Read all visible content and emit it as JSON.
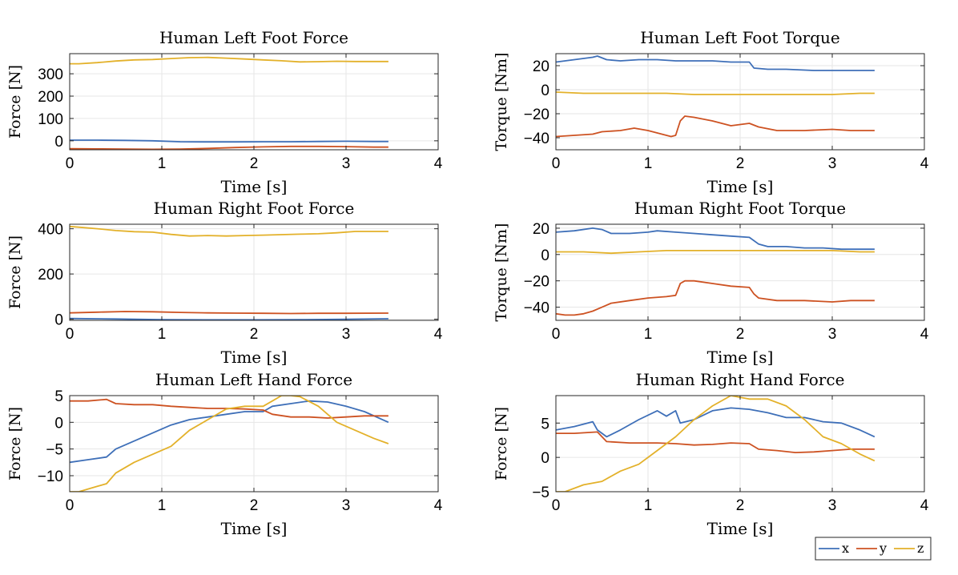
{
  "colors": {
    "x": "#3E6FB8",
    "y": "#CD5222",
    "z": "#E3B12A",
    "axis": "#262626",
    "grid": "#e6e6e6"
  },
  "legend": {
    "entries": [
      "x",
      "y",
      "z"
    ]
  },
  "chart_data": [
    {
      "type": "line",
      "title": "Human Left Foot Force",
      "xlabel": "Time [s]",
      "ylabel": "Force [N]",
      "xlim": [
        0,
        4
      ],
      "ylim": [
        -40,
        390
      ],
      "xticks": [
        0,
        1,
        2,
        3,
        4
      ],
      "yticks": [
        0,
        100,
        200,
        300
      ],
      "series": [
        {
          "name": "x",
          "x": [
            0,
            0.3,
            0.6,
            0.9,
            1.2,
            1.5,
            1.8,
            2.1,
            2.4,
            2.7,
            3.0,
            3.3,
            3.46
          ],
          "values": [
            3,
            3,
            2,
            0,
            -4,
            -5,
            -5,
            -4,
            -4,
            -3,
            -2,
            -3,
            -3
          ]
        },
        {
          "name": "y",
          "x": [
            0,
            0.3,
            0.6,
            0.9,
            1.2,
            1.5,
            1.8,
            2.1,
            2.4,
            2.7,
            3.0,
            3.3,
            3.46
          ],
          "values": [
            -35,
            -36,
            -37,
            -38,
            -37,
            -34,
            -30,
            -27,
            -25,
            -25,
            -26,
            -28,
            -28
          ]
        },
        {
          "name": "z",
          "x": [
            0,
            0.1,
            0.3,
            0.5,
            0.7,
            0.9,
            1.1,
            1.3,
            1.5,
            1.7,
            1.9,
            2.1,
            2.3,
            2.5,
            2.7,
            2.9,
            3.1,
            3.3,
            3.46
          ],
          "values": [
            345,
            345,
            350,
            357,
            362,
            364,
            368,
            372,
            373,
            370,
            366,
            362,
            358,
            353,
            354,
            356,
            355,
            355,
            355
          ]
        }
      ]
    },
    {
      "type": "line",
      "title": "Human Left Foot Torque",
      "xlabel": "Time [s]",
      "ylabel": "Torque [Nm]",
      "xlim": [
        0,
        4
      ],
      "ylim": [
        -50,
        30
      ],
      "xticks": [
        0,
        1,
        2,
        3,
        4
      ],
      "yticks": [
        -40,
        -20,
        0,
        20
      ],
      "series": [
        {
          "name": "x",
          "x": [
            0,
            0.1,
            0.2,
            0.3,
            0.4,
            0.45,
            0.55,
            0.7,
            0.9,
            1.1,
            1.3,
            1.5,
            1.7,
            1.9,
            2.1,
            2.15,
            2.3,
            2.5,
            2.8,
            3.0,
            3.2,
            3.46
          ],
          "values": [
            23,
            24,
            25,
            26,
            27,
            28,
            25,
            24,
            25,
            25,
            24,
            24,
            24,
            23,
            23,
            18,
            17,
            17,
            16,
            16,
            16,
            16
          ]
        },
        {
          "name": "y",
          "x": [
            0,
            0.2,
            0.4,
            0.5,
            0.7,
            0.85,
            1.0,
            1.1,
            1.2,
            1.25,
            1.3,
            1.35,
            1.4,
            1.5,
            1.7,
            1.9,
            2.1,
            2.2,
            2.4,
            2.7,
            3.0,
            3.2,
            3.46
          ],
          "values": [
            -39,
            -38,
            -37,
            -35,
            -34,
            -32,
            -34,
            -36,
            -38,
            -39,
            -38,
            -26,
            -22,
            -23,
            -26,
            -30,
            -28,
            -31,
            -34,
            -34,
            -33,
            -34,
            -34
          ]
        },
        {
          "name": "z",
          "x": [
            0,
            0.3,
            0.6,
            0.9,
            1.2,
            1.5,
            1.8,
            2.1,
            2.4,
            2.7,
            3.0,
            3.3,
            3.46
          ],
          "values": [
            -2,
            -3,
            -3,
            -3,
            -3,
            -4,
            -4,
            -4,
            -4,
            -4,
            -4,
            -3,
            -3
          ]
        }
      ]
    },
    {
      "type": "line",
      "title": "Human Right Foot Force",
      "xlabel": "Time [s]",
      "ylabel": "Force [N]",
      "xlim": [
        0,
        4
      ],
      "ylim": [
        -5,
        420
      ],
      "xticks": [
        0,
        1,
        2,
        3,
        4
      ],
      "yticks": [
        0,
        200,
        400
      ],
      "series": [
        {
          "name": "x",
          "x": [
            0,
            0.5,
            1.0,
            1.5,
            2.0,
            2.5,
            3.0,
            3.46
          ],
          "values": [
            3,
            1,
            -2,
            -3,
            -3,
            -2,
            0,
            2
          ]
        },
        {
          "name": "y",
          "x": [
            0,
            0.3,
            0.6,
            0.9,
            1.2,
            1.5,
            1.8,
            2.1,
            2.4,
            2.7,
            3.0,
            3.46
          ],
          "values": [
            28,
            31,
            34,
            33,
            30,
            28,
            27,
            26,
            25,
            26,
            26,
            27
          ]
        },
        {
          "name": "z",
          "x": [
            0,
            0.1,
            0.3,
            0.5,
            0.7,
            0.9,
            1.1,
            1.3,
            1.5,
            1.7,
            1.9,
            2.1,
            2.3,
            2.5,
            2.7,
            2.9,
            3.1,
            3.3,
            3.46
          ],
          "values": [
            410,
            407,
            400,
            392,
            387,
            385,
            375,
            368,
            370,
            368,
            370,
            372,
            374,
            376,
            378,
            382,
            388,
            388,
            388
          ]
        }
      ]
    },
    {
      "type": "line",
      "title": "Human Right Foot Torque",
      "xlabel": "Time [s]",
      "ylabel": "Torque [Nm]",
      "xlim": [
        0,
        4
      ],
      "ylim": [
        -50,
        23
      ],
      "xticks": [
        0,
        1,
        2,
        3,
        4
      ],
      "yticks": [
        -40,
        -20,
        0,
        20
      ],
      "series": [
        {
          "name": "x",
          "x": [
            0,
            0.2,
            0.4,
            0.5,
            0.6,
            0.8,
            1.0,
            1.1,
            1.3,
            1.5,
            1.7,
            1.9,
            2.1,
            2.2,
            2.3,
            2.5,
            2.7,
            2.9,
            3.1,
            3.3,
            3.46
          ],
          "values": [
            17,
            18,
            20,
            19,
            16,
            16,
            17,
            18,
            17,
            16,
            15,
            14,
            13,
            8,
            6,
            6,
            5,
            5,
            4,
            4,
            4
          ]
        },
        {
          "name": "y",
          "x": [
            0,
            0.1,
            0.2,
            0.3,
            0.4,
            0.5,
            0.6,
            0.8,
            1.0,
            1.2,
            1.3,
            1.35,
            1.4,
            1.5,
            1.7,
            1.9,
            2.1,
            2.15,
            2.2,
            2.4,
            2.7,
            3.0,
            3.2,
            3.46
          ],
          "values": [
            -45,
            -46,
            -46,
            -45,
            -43,
            -40,
            -37,
            -35,
            -33,
            -32,
            -31,
            -22,
            -20,
            -20,
            -22,
            -24,
            -25,
            -30,
            -33,
            -35,
            -35,
            -36,
            -35,
            -35
          ]
        },
        {
          "name": "z",
          "x": [
            0,
            0.3,
            0.6,
            0.9,
            1.2,
            1.5,
            1.8,
            2.1,
            2.4,
            2.7,
            3.0,
            3.3,
            3.46
          ],
          "values": [
            2,
            2,
            1,
            2,
            3,
            3,
            3,
            3,
            3,
            3,
            3,
            2,
            2
          ]
        }
      ]
    },
    {
      "type": "line",
      "title": "Human Left Hand Force",
      "xlabel": "Time [s]",
      "ylabel": "Force [N]",
      "xlim": [
        0,
        4
      ],
      "ylim": [
        -13,
        5
      ],
      "xticks": [
        0,
        1,
        2,
        3,
        4
      ],
      "yticks": [
        -10,
        -5,
        0,
        5
      ],
      "series": [
        {
          "name": "x",
          "x": [
            0,
            0.2,
            0.4,
            0.5,
            0.7,
            0.9,
            1.1,
            1.3,
            1.5,
            1.7,
            1.9,
            2.1,
            2.2,
            2.4,
            2.6,
            2.8,
            3.0,
            3.2,
            3.46
          ],
          "values": [
            -7.5,
            -7,
            -6.5,
            -5,
            -3.5,
            -2,
            -0.5,
            0.5,
            1,
            1.5,
            2,
            2,
            3,
            3.5,
            4,
            3.8,
            3,
            2,
            0
          ]
        },
        {
          "name": "y",
          "x": [
            0,
            0.2,
            0.4,
            0.5,
            0.7,
            0.9,
            1.1,
            1.3,
            1.5,
            1.7,
            1.9,
            2.1,
            2.2,
            2.4,
            2.6,
            2.8,
            3.0,
            3.2,
            3.46
          ],
          "values": [
            4,
            4,
            4.3,
            3.5,
            3.3,
            3.3,
            3,
            2.8,
            2.6,
            2.6,
            2.5,
            2.3,
            1.5,
            1,
            1,
            0.8,
            1,
            1.2,
            1.2
          ]
        },
        {
          "name": "z",
          "x": [
            0,
            0.1,
            0.3,
            0.4,
            0.5,
            0.7,
            0.9,
            1.1,
            1.3,
            1.5,
            1.7,
            1.9,
            2.1,
            2.2,
            2.3,
            2.4,
            2.5,
            2.7,
            2.9,
            3.1,
            3.3,
            3.46
          ],
          "values": [
            -13,
            -13,
            -12,
            -11.5,
            -9.5,
            -7.5,
            -6,
            -4.5,
            -1.5,
            0.5,
            2.5,
            3,
            3,
            4,
            5,
            5,
            4.8,
            3,
            0,
            -1.5,
            -3,
            -4
          ]
        }
      ]
    },
    {
      "type": "line",
      "title": "Human Right Hand Force",
      "xlabel": "Time [s]",
      "ylabel": "Force [N]",
      "xlim": [
        0,
        4
      ],
      "ylim": [
        -5,
        9
      ],
      "xticks": [
        0,
        1,
        2,
        3,
        4
      ],
      "yticks": [
        -5,
        0,
        5
      ],
      "series": [
        {
          "name": "x",
          "x": [
            0,
            0.2,
            0.4,
            0.45,
            0.55,
            0.7,
            0.9,
            1.1,
            1.2,
            1.3,
            1.35,
            1.5,
            1.7,
            1.9,
            2.1,
            2.3,
            2.5,
            2.7,
            2.9,
            3.1,
            3.3,
            3.46
          ],
          "values": [
            4,
            4.5,
            5.2,
            4,
            3,
            4,
            5.5,
            6.8,
            6,
            6.8,
            5,
            5.5,
            6.8,
            7.2,
            7,
            6.5,
            5.8,
            5.8,
            5.2,
            5,
            4,
            3
          ]
        },
        {
          "name": "y",
          "x": [
            0,
            0.2,
            0.45,
            0.55,
            0.8,
            1.1,
            1.3,
            1.5,
            1.7,
            1.9,
            2.1,
            2.2,
            2.4,
            2.6,
            2.8,
            3.0,
            3.2,
            3.46
          ],
          "values": [
            3.5,
            3.5,
            3.7,
            2.3,
            2.1,
            2.1,
            2,
            1.8,
            1.9,
            2.1,
            2,
            1.2,
            1,
            0.7,
            0.8,
            1,
            1.2,
            1.2
          ]
        },
        {
          "name": "z",
          "x": [
            0,
            0.1,
            0.3,
            0.5,
            0.7,
            0.9,
            1.1,
            1.3,
            1.5,
            1.7,
            1.9,
            2.1,
            2.3,
            2.5,
            2.7,
            2.9,
            3.1,
            3.3,
            3.46
          ],
          "values": [
            -5,
            -5,
            -4,
            -3.5,
            -2,
            -1,
            1,
            3,
            5.5,
            7.5,
            9,
            8.5,
            8.5,
            7.5,
            5.5,
            3,
            2,
            0.5,
            -0.5
          ]
        }
      ]
    }
  ]
}
